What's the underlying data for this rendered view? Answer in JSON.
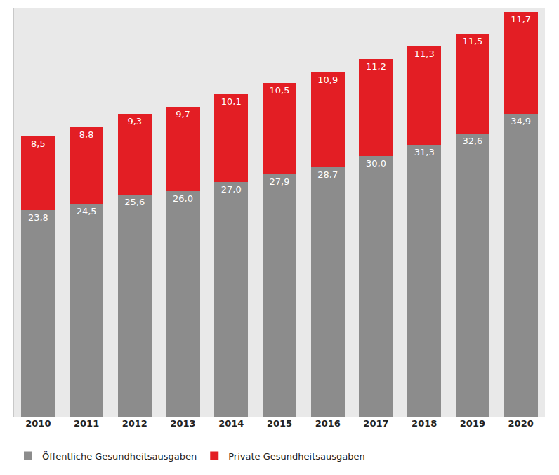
{
  "chart_data": {
    "type": "bar",
    "stacked": true,
    "data_labels": true,
    "grid": false,
    "legend": "bottom",
    "tick_labels": "x",
    "categories": [
      "2010",
      "2011",
      "2012",
      "2013",
      "2014",
      "2015",
      "2016",
      "2017",
      "2018",
      "2019",
      "2020"
    ],
    "ylim": [
      0,
      47
    ],
    "series": [
      {
        "name": "Öffentliche Gesundheitsausgaben",
        "color": "#8c8c8c",
        "values": [
          23.8,
          24.5,
          25.6,
          26.0,
          27.0,
          27.9,
          28.7,
          30.0,
          31.3,
          32.6,
          34.9
        ],
        "value_labels": [
          "23,8",
          "24,5",
          "25,6",
          "26,0",
          "27,0",
          "27,9",
          "28,7",
          "30,0",
          "31,3",
          "32,6",
          "34,9"
        ]
      },
      {
        "name": "Private Gesundheitsausgaben",
        "color": "#e31e24",
        "values": [
          8.5,
          8.8,
          9.3,
          9.7,
          10.1,
          10.5,
          10.9,
          11.2,
          11.3,
          11.5,
          11.7
        ],
        "value_labels": [
          "8,5",
          "8,8",
          "9,3",
          "9,7",
          "10,1",
          "10,5",
          "10,9",
          "11,2",
          "11,3",
          "11,5",
          "11,7"
        ]
      }
    ]
  }
}
